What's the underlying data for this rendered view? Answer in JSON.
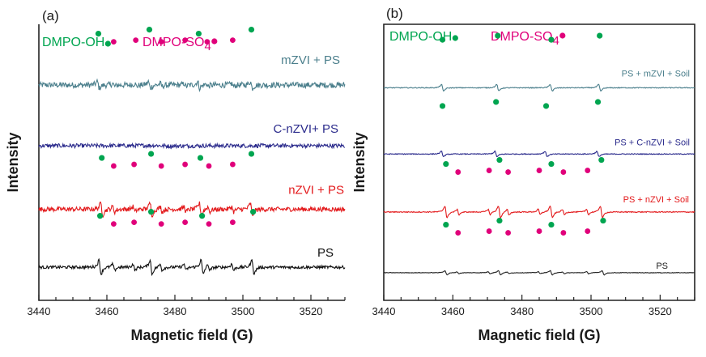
{
  "chart_data": [
    {
      "panel": "(a)",
      "type": "line",
      "xlabel": "Magnetic field (G)",
      "ylabel": "Intensity",
      "xlim": [
        3440,
        3530
      ],
      "xticks": [
        3440,
        3460,
        3480,
        3500,
        3520
      ],
      "legend": [
        {
          "label": "DMPO-OH",
          "color": "#00a550",
          "marker": "dot"
        },
        {
          "label": "DMPO-SO",
          "subscript": "4",
          "color": "#e0007a",
          "marker": "dot"
        }
      ],
      "series": [
        {
          "name": "mZVI + PS",
          "color": "#4b7f8c",
          "baseline": 0.78,
          "amp": 0.55,
          "noise": 0.35,
          "oh_x": [
            3457.5,
            3472.5,
            3487.0,
            3502.5
          ],
          "so4_x": [
            3462.0,
            3468.5,
            3476.0,
            3483.0,
            3489.5,
            3497.0
          ]
        },
        {
          "name": "C-nZVI+ PS",
          "color": "#2b2b8c",
          "baseline": 0.56,
          "amp": 0.1,
          "noise": 0.25,
          "oh_x": [],
          "so4_x": []
        },
        {
          "name": "nZVI + PS",
          "color": "#e31a1c",
          "baseline": 0.33,
          "amp": 1.0,
          "noise": 0.28,
          "oh_x": [
            3458.5,
            3473.0,
            3487.5,
            3502.5
          ],
          "so4_x": [
            3462.0,
            3468.0,
            3476.0,
            3483.0,
            3490.0,
            3497.0
          ]
        },
        {
          "name": "PS",
          "color": "#111111",
          "baseline": 0.12,
          "amp": 1.2,
          "noise": 0.18,
          "oh_x": [
            3458.0,
            3473.0,
            3488.0,
            3503.0
          ],
          "so4_x": [
            3462.0,
            3468.0,
            3476.0,
            3483.0,
            3490.0,
            3497.0
          ]
        }
      ]
    },
    {
      "panel": "(b)",
      "type": "line",
      "xlabel": "Magnetic field (G)",
      "ylabel": "Intensity",
      "xlim": [
        3440,
        3530
      ],
      "xticks": [
        3440,
        3460,
        3480,
        3500,
        3520
      ],
      "legend": [
        {
          "label": "DMPO-OH",
          "color": "#00a550",
          "marker": "dot"
        },
        {
          "label": "DMPO-SO",
          "subscript": "4",
          "color": "#e0007a",
          "marker": "dot"
        }
      ],
      "series": [
        {
          "name": "PS + mZVI + Soil",
          "color": "#4b7f8c",
          "baseline": 0.77,
          "amp": 0.55,
          "noise": 0.05,
          "oh_x": [
            3457.0,
            3473.0,
            3488.5,
            3502.5
          ],
          "so4_x": []
        },
        {
          "name": "PS + C-nZVI + Soil",
          "color": "#2b2b8c",
          "baseline": 0.53,
          "amp": 0.45,
          "noise": 0.05,
          "oh_x": [
            3457.0,
            3472.5,
            3487.0,
            3502.0
          ],
          "so4_x": []
        },
        {
          "name": "PS + nZVI + Soil",
          "color": "#e31a1c",
          "baseline": 0.32,
          "amp": 1.0,
          "noise": 0.06,
          "oh_x": [
            3458.0,
            3473.5,
            3488.5,
            3503.0
          ],
          "so4_x": [
            3461.5,
            3470.5,
            3476.0,
            3485.0,
            3492.0,
            3499.0
          ]
        },
        {
          "name": "PS",
          "color": "#222222",
          "baseline": 0.1,
          "amp": 0.35,
          "noise": 0.03,
          "oh_x": [
            3458.0,
            3473.5,
            3488.5,
            3503.5
          ],
          "so4_x": [
            3461.5,
            3470.5,
            3476.0,
            3485.0,
            3492.0,
            3499.0
          ]
        }
      ]
    }
  ]
}
